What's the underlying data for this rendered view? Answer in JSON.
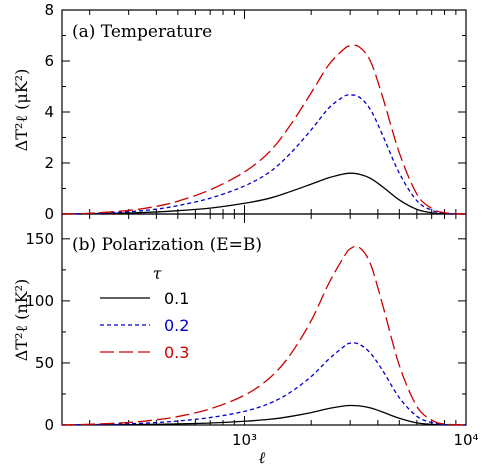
{
  "chart_data": [
    {
      "type": "line",
      "title": "(a) Temperature",
      "xlabel": "",
      "ylabel": "ΔT²ℓ (μK²)",
      "xscale": "log",
      "xlim": [
        150,
        10000
      ],
      "ylim": [
        0,
        8
      ],
      "yticks": [
        "0",
        "2",
        "4",
        "6",
        "8"
      ],
      "legend": null,
      "series": [
        {
          "name": "0.1",
          "color": "#000000",
          "dash": "solid",
          "x": [
            150,
            200,
            300,
            400,
            500,
            700,
            1000,
            1300,
            1600,
            2000,
            2400,
            2800,
            3000,
            3300,
            3700,
            4200,
            5000,
            6000,
            7000,
            8000,
            10000
          ],
          "values": [
            0.0,
            0.01,
            0.04,
            0.08,
            0.13,
            0.23,
            0.42,
            0.62,
            0.87,
            1.17,
            1.42,
            1.57,
            1.6,
            1.56,
            1.4,
            1.07,
            0.55,
            0.18,
            0.05,
            0.01,
            0.0
          ]
        },
        {
          "name": "0.2",
          "color": "#0000cc",
          "dash": "short",
          "x": [
            150,
            200,
            300,
            400,
            500,
            700,
            1000,
            1300,
            1600,
            2000,
            2400,
            2800,
            3000,
            3300,
            3700,
            4200,
            5000,
            6000,
            7000,
            8000,
            10000
          ],
          "values": [
            0.0,
            0.02,
            0.09,
            0.19,
            0.33,
            0.62,
            1.1,
            1.65,
            2.35,
            3.3,
            4.15,
            4.6,
            4.67,
            4.58,
            4.1,
            3.1,
            1.6,
            0.52,
            0.15,
            0.03,
            0.0
          ]
        },
        {
          "name": "0.3",
          "color": "#cc0000",
          "dash": "long",
          "x": [
            150,
            200,
            300,
            400,
            500,
            700,
            1000,
            1300,
            1600,
            2000,
            2400,
            2800,
            3000,
            3300,
            3700,
            4200,
            5000,
            6000,
            7000,
            8000,
            10000
          ],
          "values": [
            0.0,
            0.03,
            0.14,
            0.3,
            0.5,
            0.95,
            1.65,
            2.45,
            3.45,
            4.75,
            5.85,
            6.45,
            6.6,
            6.55,
            6.0,
            4.6,
            2.4,
            0.78,
            0.22,
            0.05,
            0.0
          ]
        }
      ]
    },
    {
      "type": "line",
      "title": "(b) Polarization (E=B)",
      "xlabel": "ℓ",
      "ylabel": "ΔT²ℓ (nK²)",
      "xscale": "log",
      "xlim": [
        150,
        10000
      ],
      "ylim": [
        0,
        170
      ],
      "yticks": [
        "0",
        "50",
        "100",
        "150"
      ],
      "xticks": [
        "10³",
        "10⁴"
      ],
      "legend": {
        "title": "τ",
        "placement": "left",
        "entries": [
          "0.1",
          "0.2",
          "0.3"
        ]
      },
      "series": [
        {
          "name": "0.1",
          "color": "#000000",
          "dash": "solid",
          "x": [
            150,
            200,
            300,
            400,
            500,
            700,
            1000,
            1300,
            1600,
            2000,
            2400,
            2800,
            3000,
            3300,
            3700,
            4200,
            5000,
            6000,
            7000,
            8000,
            10000
          ],
          "values": [
            0.0,
            0.1,
            0.3,
            0.6,
            0.9,
            1.6,
            3.0,
            4.6,
            6.8,
            10.0,
            13.3,
            15.3,
            15.7,
            15.4,
            13.8,
            10.5,
            5.4,
            1.7,
            0.5,
            0.1,
            0.0
          ]
        },
        {
          "name": "0.2",
          "color": "#0000cc",
          "dash": "short",
          "x": [
            150,
            200,
            300,
            400,
            500,
            700,
            1000,
            1300,
            1600,
            2000,
            2400,
            2800,
            3000,
            3300,
            3700,
            4200,
            5000,
            6000,
            7000,
            8000,
            10000
          ],
          "values": [
            0.0,
            0.3,
            1.0,
            2.0,
            3.2,
            6.0,
            11.0,
            17.5,
            26.0,
            39.0,
            53.0,
            63.0,
            66.0,
            65.0,
            58.0,
            44.0,
            22.0,
            7.0,
            2.0,
            0.4,
            0.0
          ]
        },
        {
          "name": "0.3",
          "color": "#cc0000",
          "dash": "long",
          "x": [
            150,
            200,
            300,
            400,
            500,
            700,
            1000,
            1300,
            1600,
            2000,
            2400,
            2800,
            3000,
            3300,
            3700,
            4200,
            5000,
            6000,
            7000,
            8000,
            10000
          ],
          "values": [
            0.0,
            0.6,
            2.0,
            4.2,
            6.8,
            13.0,
            24.0,
            38.0,
            56.0,
            84.0,
            114.0,
            135.0,
            142.0,
            143.0,
            130.0,
            97.0,
            48.0,
            15.0,
            4.0,
            0.8,
            0.0
          ]
        }
      ]
    }
  ]
}
